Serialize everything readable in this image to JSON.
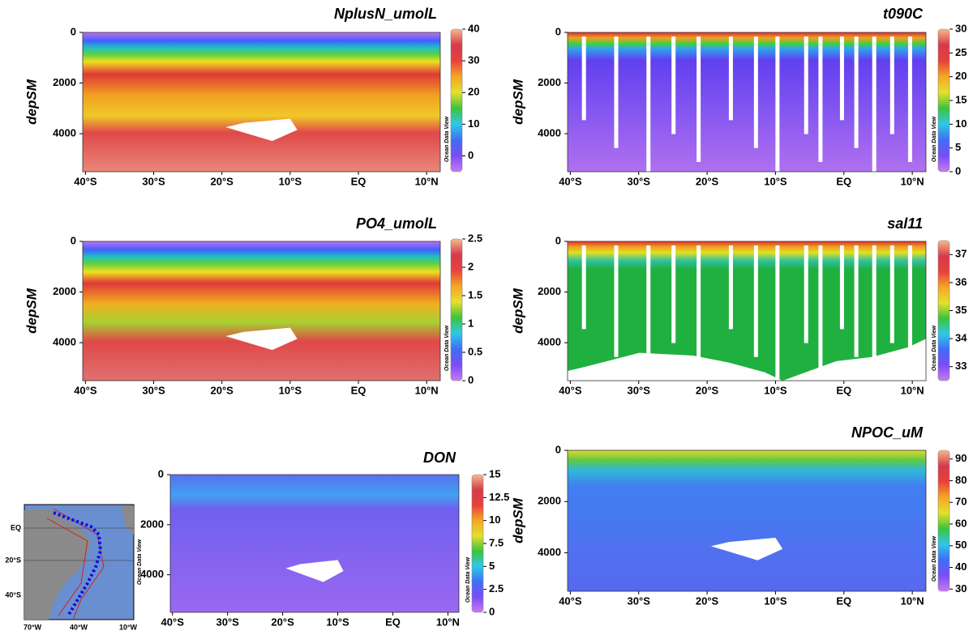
{
  "chart_data": [
    {
      "type": "section",
      "title": "NplusN_umolL",
      "ylabel": "depSM",
      "y_inverted": true,
      "xlim": [
        -40.4,
        12
      ],
      "xticks": [
        {
          "value": -40,
          "label": "40°S"
        },
        {
          "value": -30,
          "label": "30°S"
        },
        {
          "value": -20,
          "label": "20°S"
        },
        {
          "value": -10,
          "label": "10°S"
        },
        {
          "value": 0,
          "label": "EQ"
        },
        {
          "value": 10,
          "label": "10°N"
        }
      ],
      "ylim": [
        0,
        5500
      ],
      "yticks": [
        0,
        2000,
        4000
      ],
      "clim": [
        -5,
        40
      ],
      "cticks": [
        0,
        10,
        20,
        30,
        40
      ],
      "colorbar_credit": "Ocean Data View"
    },
    {
      "type": "section",
      "title": "t090C",
      "ylabel": "depSM",
      "y_inverted": true,
      "xlim": [
        -40.4,
        12
      ],
      "xticks": [
        {
          "value": -40,
          "label": "40°S"
        },
        {
          "value": -30,
          "label": "30°S"
        },
        {
          "value": -20,
          "label": "20°S"
        },
        {
          "value": -10,
          "label": "10°S"
        },
        {
          "value": 0,
          "label": "EQ"
        },
        {
          "value": 10,
          "label": "10°N"
        }
      ],
      "ylim": [
        0,
        5500
      ],
      "yticks": [
        0,
        2000,
        4000
      ],
      "clim": [
        0,
        30
      ],
      "cticks": [
        0,
        5,
        10,
        15,
        20,
        25,
        30
      ],
      "colorbar_credit": "Ocean Data View"
    },
    {
      "type": "section",
      "title": "PO4_umolL",
      "ylabel": "depSM",
      "y_inverted": true,
      "xlim": [
        -40.4,
        12
      ],
      "xticks": [
        {
          "value": -40,
          "label": "40°S"
        },
        {
          "value": -30,
          "label": "30°S"
        },
        {
          "value": -20,
          "label": "20°S"
        },
        {
          "value": -10,
          "label": "10°S"
        },
        {
          "value": 0,
          "label": "EQ"
        },
        {
          "value": 10,
          "label": "10°N"
        }
      ],
      "ylim": [
        0,
        5500
      ],
      "yticks": [
        0,
        2000,
        4000
      ],
      "clim": [
        0,
        2.5
      ],
      "cticks": [
        0,
        0.5,
        1,
        1.5,
        2,
        2.5
      ],
      "colorbar_credit": "Ocean Data View"
    },
    {
      "type": "section",
      "title": "sal11",
      "ylabel": "depSM",
      "y_inverted": true,
      "xlim": [
        -40.4,
        12
      ],
      "xticks": [
        {
          "value": -40,
          "label": "40°S"
        },
        {
          "value": -30,
          "label": "30°S"
        },
        {
          "value": -20,
          "label": "20°S"
        },
        {
          "value": -10,
          "label": "10°S"
        },
        {
          "value": 0,
          "label": "EQ"
        },
        {
          "value": 10,
          "label": "10°N"
        }
      ],
      "ylim": [
        0,
        5500
      ],
      "yticks": [
        0,
        2000,
        4000
      ],
      "clim": [
        32.5,
        37.5
      ],
      "cticks": [
        33,
        34,
        35,
        36,
        37
      ],
      "colorbar_credit": "Ocean Data View"
    },
    {
      "type": "section",
      "title": "DON",
      "y_inverted": true,
      "xlim": [
        -40.4,
        12
      ],
      "xticks": [
        {
          "value": -40,
          "label": "40°S"
        },
        {
          "value": -30,
          "label": "30°S"
        },
        {
          "value": -20,
          "label": "20°S"
        },
        {
          "value": -10,
          "label": "10°S"
        },
        {
          "value": 0,
          "label": "EQ"
        },
        {
          "value": 10,
          "label": "10°N"
        }
      ],
      "ylim": [
        0,
        5500
      ],
      "yticks": [
        0,
        2000,
        4000
      ],
      "clim": [
        0,
        15
      ],
      "cticks": [
        0,
        2.5,
        5,
        7.5,
        10,
        12.5,
        15
      ],
      "colorbar_credit": "Ocean Data View"
    },
    {
      "type": "section",
      "title": "NPOC_uM",
      "ylabel": "depSM",
      "y_inverted": true,
      "xlim": [
        -40.4,
        12
      ],
      "xticks": [
        {
          "value": -40,
          "label": "40°S"
        },
        {
          "value": -30,
          "label": "30°S"
        },
        {
          "value": -20,
          "label": "20°S"
        },
        {
          "value": -10,
          "label": "10°S"
        },
        {
          "value": 0,
          "label": "EQ"
        },
        {
          "value": 10,
          "label": "10°N"
        }
      ],
      "ylim": [
        0,
        5500
      ],
      "yticks": [
        0,
        2000,
        4000
      ],
      "clim": [
        29,
        94
      ],
      "cticks": [
        30,
        40,
        50,
        60,
        70,
        80,
        90
      ],
      "colorbar_credit": "Ocean Data View"
    }
  ],
  "colormap": [
    "#c77cf2",
    "#7b4cf5",
    "#3f6ef5",
    "#2ec8e8",
    "#3cc43c",
    "#e6e02a",
    "#f5a623",
    "#e8403c",
    "#d63a4a",
    "#f7b98a"
  ],
  "map": {
    "lat_labels": [
      "EQ",
      "20°S",
      "40°S"
    ],
    "lon_labels": [
      "70°W",
      "40°W",
      "10°W"
    ],
    "credit": "Ocean Data View"
  }
}
